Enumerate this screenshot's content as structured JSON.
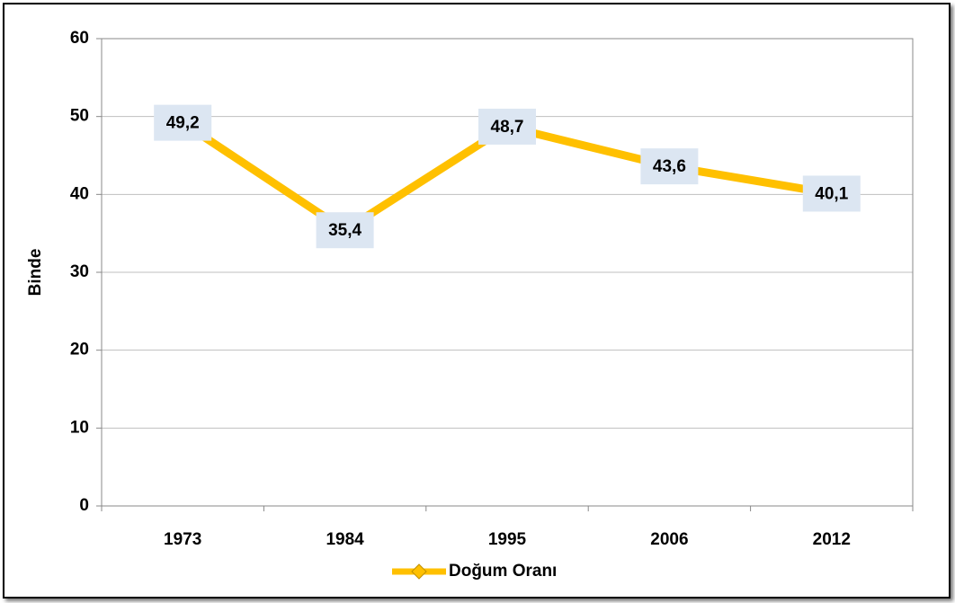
{
  "chart_data": {
    "type": "line",
    "y_label": "Binde",
    "categories": [
      "1973",
      "1984",
      "1995",
      "2006",
      "2012"
    ],
    "series": [
      {
        "name": "Doğum Oranı",
        "color": "#ffc000",
        "values": [
          49.2,
          35.4,
          48.7,
          43.6,
          40.1
        ],
        "value_labels": [
          "49,2",
          "35,4",
          "48,7",
          "43,6",
          "40,1"
        ]
      }
    ],
    "ylim": [
      0,
      60
    ],
    "yticks": [
      0,
      10,
      20,
      30,
      40,
      50,
      60
    ],
    "grid": true,
    "legend": "bottom"
  }
}
